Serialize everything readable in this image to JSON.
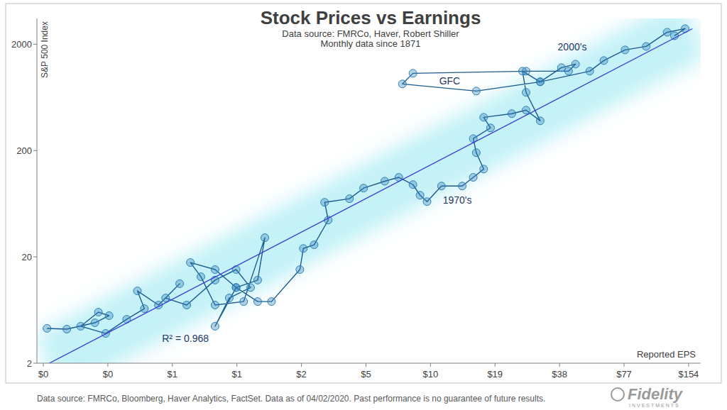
{
  "chart_data": {
    "type": "scatter",
    "title": "Stock Prices vs Earnings",
    "subtitle": [
      "Data source: FMRCo, Haver, Robert Shiller",
      "Monthly data since 1871"
    ],
    "x_label": "Reported EPS",
    "y_label": "S&P 500 Index",
    "log": true,
    "grid": false,
    "marker": "circle",
    "line_style": "solid",
    "xlim": [
      0.14,
      175
    ],
    "ylim": [
      2,
      3500
    ],
    "xticks": [
      {
        "value": 0.15,
        "label": "$0"
      },
      {
        "value": 0.3,
        "label": "$0"
      },
      {
        "value": 0.6,
        "label": "$1"
      },
      {
        "value": 1.2,
        "label": "$1"
      },
      {
        "value": 2.4,
        "label": "$2"
      },
      {
        "value": 4.8,
        "label": "$5"
      },
      {
        "value": 9.6,
        "label": "$10"
      },
      {
        "value": 19.2,
        "label": "$19"
      },
      {
        "value": 38.4,
        "label": "$38"
      },
      {
        "value": 76.8,
        "label": "$77"
      },
      {
        "value": 153.6,
        "label": "$154"
      }
    ],
    "yticks": [
      2,
      20,
      200,
      2000
    ],
    "x": [
      0.156,
      0.193,
      0.261,
      0.304,
      0.271,
      0.224,
      0.293,
      0.367,
      0.444,
      0.412,
      0.517,
      0.649,
      0.558,
      0.7,
      0.949,
      1.19,
      1.39,
      1.105,
      0.949,
      1.19,
      1.5,
      1.62,
      1.29,
      0.949,
      0.815,
      0.728,
      0.949,
      1.19,
      1.5,
      1.74,
      2.36,
      2.45,
      2.75,
      3.2,
      3.08,
      4.02,
      4.68,
      5.87,
      6.83,
      7.95,
      8.58,
      9.25,
      10.8,
      13.5,
      15.2,
      17.0,
      15.7,
      15.2,
      18.3,
      17.0,
      23.0,
      26.8,
      31.2,
      26.8,
      25.8,
      31.2,
      39.2,
      45.6,
      42.3,
      26.8,
      7.95,
      7.1,
      15.7,
      31.2,
      53.1,
      61.8,
      77.6,
      97.4,
      122,
      148,
      132
    ],
    "series": [
      {
        "name": "S&P 500 Index",
        "color": "#2e7fb5",
        "values": [
          4.25,
          4.18,
          4.8,
          5.6,
          6.04,
          4.45,
          3.81,
          5.18,
          6.52,
          9.57,
          7.05,
          11.2,
          8.21,
          7.05,
          12.1,
          15.2,
          10.3,
          8.21,
          4.45,
          10.3,
          12.1,
          30.3,
          7.6,
          7.05,
          13.0,
          17.7,
          15.2,
          10.3,
          7.6,
          7.6,
          15.2,
          24.0,
          26.0,
          44.4,
          65.2,
          70.5,
          88.7,
          103,
          112,
          95.7,
          76.0,
          66.2,
          92.8,
          92.8,
          112,
          134,
          191,
          259,
          327,
          411,
          445,
          480,
          381,
          705,
          1117,
          887,
          1205,
          1301,
          1117,
          1117,
          1066,
          847,
          726,
          887,
          1117,
          1406,
          1770,
          1910,
          2596,
          2805,
          2404
        ]
      }
    ],
    "trendline": {
      "x": [
        0.16,
        160
      ],
      "y": [
        2,
        2800
      ],
      "color": "#3b3bd4"
    },
    "annotations": [
      {
        "text": "2000's",
        "x": 44,
        "y": 1900
      },
      {
        "text": "GFC",
        "x": 11.8,
        "y": 900
      },
      {
        "text": "1970's",
        "x": 12.8,
        "y": 68
      },
      {
        "text": "R² = 0.968",
        "x": 0.69,
        "y": 3.4
      }
    ],
    "footnote": "Data source: FMRCo, Bloomberg, Haver Analytics, FactSet.  Data as of 04/02/2020. Past performance is no guarantee of future results.",
    "logo": {
      "text": "Fidelity",
      "subtext": "INVESTMENTS"
    }
  }
}
